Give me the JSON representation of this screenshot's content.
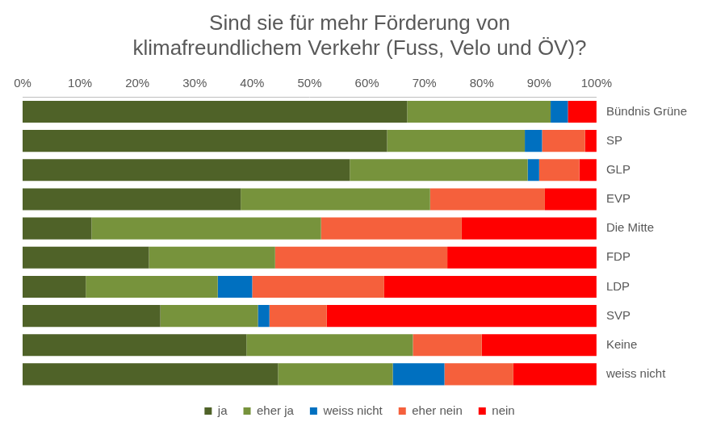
{
  "chart_data": {
    "type": "bar",
    "title": [
      "Sind sie für mehr Förderung von",
      "klimafreundlichem Verkehr (Fuss, Velo und ÖV)?"
    ],
    "orientation": "horizontal",
    "stacked": true,
    "grid": false,
    "legend": "bottom",
    "categories": [
      "Bündnis Grüne",
      "SP",
      "GLP",
      "EVP",
      "Die Mitte",
      "FDP",
      "LDP",
      "SVP",
      "Keine",
      "weiss nicht"
    ],
    "series": [
      {
        "name": "ja",
        "color": "#4f6228",
        "values": [
          67,
          63.5,
          57,
          38,
          12,
          22,
          11,
          24,
          39,
          44.5
        ]
      },
      {
        "name": "eher ja",
        "color": "#77933c",
        "values": [
          25,
          24,
          31,
          33,
          40,
          22,
          23,
          17,
          29,
          20
        ]
      },
      {
        "name": "weiss nicht",
        "color": "#0070c0",
        "values": [
          3,
          3,
          2,
          0,
          0,
          0,
          6,
          2,
          0,
          9
        ]
      },
      {
        "name": "eher nein",
        "color": "#f5603c",
        "values": [
          0,
          7.5,
          7,
          20,
          24.5,
          30,
          23,
          10,
          12,
          12
        ]
      },
      {
        "name": "nein",
        "color": "#ff0000",
        "values": [
          5,
          2,
          3,
          9,
          23.5,
          26,
          37,
          47,
          20,
          14.5
        ]
      }
    ],
    "xlim": [
      0,
      100
    ],
    "xticks": [
      {
        "value": 0,
        "label": "0%"
      },
      {
        "value": 10,
        "label": "10%"
      },
      {
        "value": 20,
        "label": "20%"
      },
      {
        "value": 30,
        "label": "30%"
      },
      {
        "value": 40,
        "label": "40%"
      },
      {
        "value": 50,
        "label": "50%"
      },
      {
        "value": 60,
        "label": "60%"
      },
      {
        "value": 70,
        "label": "70%"
      },
      {
        "value": 80,
        "label": "80%"
      },
      {
        "value": 90,
        "label": "90%"
      },
      {
        "value": 100,
        "label": "100%"
      }
    ]
  }
}
